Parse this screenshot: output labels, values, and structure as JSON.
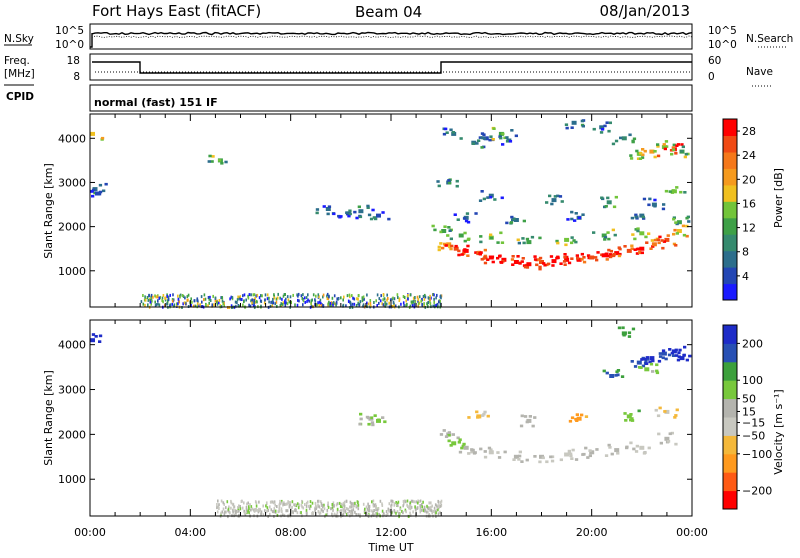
{
  "header": {
    "station": "Fort Hays East (fitACF)",
    "beam": "Beam 04",
    "date": "08/Jan/2013"
  },
  "summary_panels": {
    "nsky_label": "N.Sky",
    "nsearch_label": "N.Search",
    "noise_ticks": [
      "10^5",
      "10^0"
    ],
    "freq_label_1": "Freq.",
    "freq_label_2": "[MHz]",
    "freq_ticks": [
      "18",
      "8"
    ],
    "nave_label": "Nave",
    "nave_ticks": [
      "60",
      "0"
    ],
    "cpid_label": "CPID",
    "cpid_text": "normal (fast) 151 IF"
  },
  "colors": {
    "power_scale": [
      "#1a1aff",
      "#2346b4",
      "#2c6e8c",
      "#358a6e",
      "#3ea047",
      "#72c43a",
      "#f0c020",
      "#f59a1e",
      "#f5781a",
      "#f04a14",
      "#ff0000"
    ],
    "velocity_scale": [
      "#ff0000",
      "#ff5a14",
      "#ff9a1e",
      "#f4b83a",
      "#c8c8c0",
      "#b4b4ae",
      "#78c83c",
      "#3ca03c",
      "#2850b4",
      "#1e2cc8"
    ]
  },
  "chart_data": [
    {
      "type": "heatmap",
      "name": "power",
      "ylabel": "Slant Range [km]",
      "xlabel": "",
      "x_ticks": [
        "00:00",
        "04:00",
        "08:00",
        "12:00",
        "16:00",
        "20:00",
        "00:00"
      ],
      "xlim_hours": [
        0,
        24
      ],
      "y_ticks": [
        1000,
        2000,
        3000,
        4000
      ],
      "ylim_km": [
        180,
        4550
      ],
      "colorbar": {
        "label": "Power [dB]",
        "ticks": [
          4,
          8,
          12,
          16,
          20,
          24,
          28
        ],
        "range": [
          0,
          30
        ]
      },
      "cell_hours": 0.2,
      "cell_km": 90,
      "cells": [
        [
          0.1,
          4100,
          18
        ],
        [
          0.2,
          2850,
          8
        ],
        [
          0.3,
          2750,
          4
        ],
        [
          5.2,
          3500,
          12
        ],
        [
          9.5,
          2400,
          6
        ],
        [
          10.3,
          2300,
          4
        ],
        [
          10.8,
          2350,
          8
        ],
        [
          11.5,
          2250,
          4
        ],
        [
          14.5,
          4100,
          6
        ],
        [
          15.3,
          3900,
          8
        ],
        [
          15.8,
          4000,
          4
        ],
        [
          16.4,
          4100,
          12
        ],
        [
          16.7,
          3950,
          6
        ],
        [
          19.3,
          4350,
          8
        ],
        [
          20.4,
          4250,
          6
        ],
        [
          21.3,
          4000,
          10
        ],
        [
          21.9,
          3650,
          16
        ],
        [
          22.4,
          3700,
          20
        ],
        [
          22.9,
          3800,
          16
        ],
        [
          23.3,
          3750,
          28
        ],
        [
          23.6,
          3700,
          12
        ],
        [
          23.3,
          2800,
          14
        ],
        [
          14.3,
          3000,
          8
        ],
        [
          16.0,
          2700,
          6
        ],
        [
          18.5,
          2600,
          8
        ],
        [
          20.7,
          2550,
          10
        ],
        [
          22.5,
          2500,
          6
        ],
        [
          14.1,
          1900,
          12
        ],
        [
          14.3,
          1600,
          20
        ],
        [
          14.6,
          1500,
          26
        ],
        [
          15.0,
          1450,
          28
        ],
        [
          15.5,
          1400,
          26
        ],
        [
          16.0,
          1300,
          28
        ],
        [
          16.5,
          1250,
          30
        ],
        [
          17.0,
          1200,
          28
        ],
        [
          17.5,
          1150,
          30
        ],
        [
          18.0,
          1200,
          26
        ],
        [
          18.5,
          1220,
          28
        ],
        [
          19.0,
          1250,
          30
        ],
        [
          19.5,
          1250,
          28
        ],
        [
          20.0,
          1300,
          26
        ],
        [
          20.5,
          1350,
          28
        ],
        [
          21.0,
          1400,
          30
        ],
        [
          21.5,
          1450,
          26
        ],
        [
          22.0,
          1500,
          28
        ],
        [
          22.5,
          1600,
          22
        ],
        [
          23.0,
          1700,
          26
        ],
        [
          23.5,
          1900,
          18
        ],
        [
          14.8,
          1800,
          12
        ],
        [
          16.0,
          1750,
          14
        ],
        [
          17.5,
          1650,
          12
        ],
        [
          19.0,
          1700,
          14
        ],
        [
          20.5,
          1800,
          12
        ],
        [
          22.0,
          1850,
          14
        ],
        [
          23.5,
          2100,
          12
        ],
        [
          15.0,
          2200,
          6
        ],
        [
          17.0,
          2150,
          8
        ],
        [
          19.5,
          2200,
          6
        ],
        [
          22.0,
          2250,
          8
        ]
      ],
      "near_range_band": {
        "from_hours": 2.0,
        "to_hours": 14.0,
        "range_km": [
          200,
          500
        ],
        "max_db": 20
      }
    },
    {
      "type": "heatmap",
      "name": "velocity",
      "ylabel": "Slant Range [km]",
      "xlabel": "Time UT",
      "x_ticks": [
        "00:00",
        "04:00",
        "08:00",
        "12:00",
        "16:00",
        "20:00",
        "00:00"
      ],
      "xlim_hours": [
        0,
        24
      ],
      "y_ticks": [
        1000,
        2000,
        3000,
        4000
      ],
      "ylim_km": [
        180,
        4550
      ],
      "colorbar": {
        "label": "Velocity [m s⁻¹]",
        "ticks": [
          200,
          100,
          50,
          15,
          -15,
          -50,
          -100,
          -200
        ],
        "range": [
          -250,
          250
        ]
      },
      "cell_hours": 0.2,
      "cell_km": 90,
      "cells": [
        [
          0.1,
          4100,
          220
        ],
        [
          21.3,
          4250,
          120
        ],
        [
          21.9,
          3600,
          180
        ],
        [
          22.4,
          3700,
          200
        ],
        [
          22.9,
          3800,
          160
        ],
        [
          23.3,
          3850,
          220
        ],
        [
          23.6,
          3700,
          240
        ],
        [
          22.2,
          3450,
          60
        ],
        [
          20.8,
          3300,
          150
        ],
        [
          11.2,
          2350,
          40
        ],
        [
          11.5,
          2300,
          60
        ],
        [
          14.3,
          2000,
          30
        ],
        [
          14.5,
          1800,
          70
        ],
        [
          15.0,
          1700,
          0
        ],
        [
          16.0,
          1600,
          -5
        ],
        [
          17.0,
          1500,
          5
        ],
        [
          18.0,
          1500,
          0
        ],
        [
          19.0,
          1550,
          -8
        ],
        [
          20.0,
          1600,
          8
        ],
        [
          21.0,
          1650,
          0
        ],
        [
          22.0,
          1700,
          -5
        ],
        [
          23.0,
          1900,
          5
        ],
        [
          15.5,
          2400,
          -60
        ],
        [
          17.5,
          2300,
          40
        ],
        [
          19.5,
          2350,
          -120
        ],
        [
          21.5,
          2400,
          80
        ],
        [
          23.0,
          2500,
          -40
        ]
      ],
      "near_range_band": {
        "from_hours": 5.0,
        "to_hours": 14.0,
        "range_km": [
          200,
          550
        ],
        "vel_a": 45,
        "vel_b": -40
      }
    }
  ]
}
